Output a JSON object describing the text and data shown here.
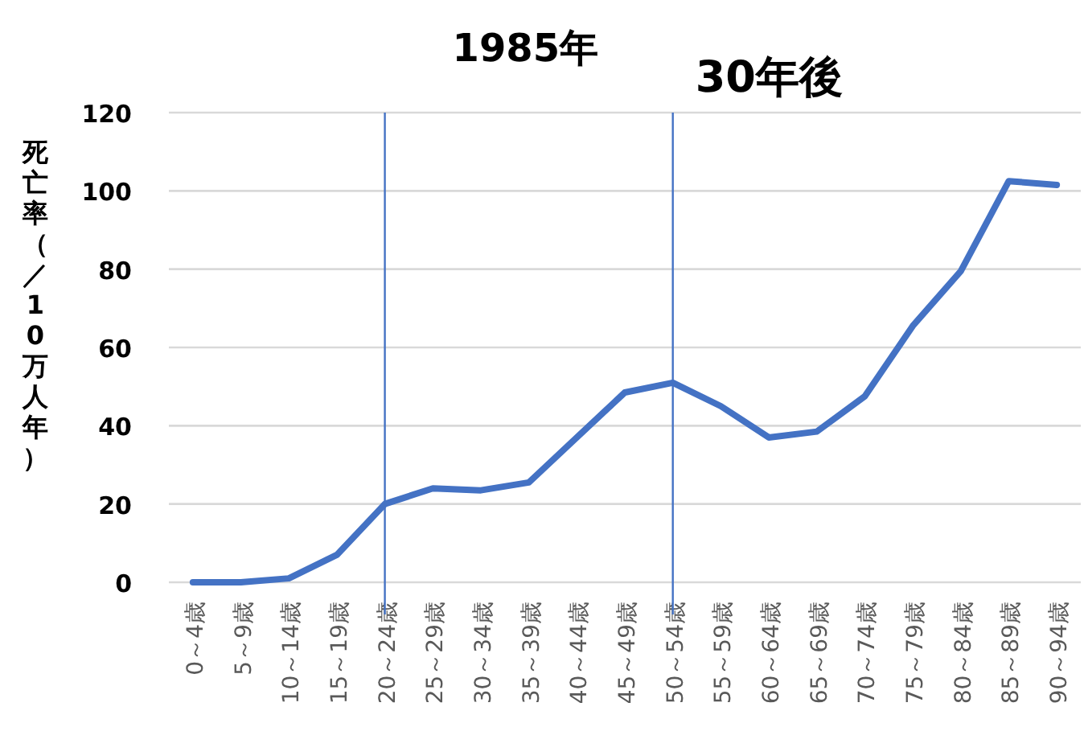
{
  "chart_data": {
    "type": "line",
    "ylabel": "死亡率（／10万人年）",
    "categories": [
      "0～4歳",
      "5～9歳",
      "10～14歳",
      "15～19歳",
      "20～24歳",
      "25～29歳",
      "30～34歳",
      "35～39歳",
      "40～44歳",
      "45～49歳",
      "50～54歳",
      "55～59歳",
      "60～64歳",
      "65～69歳",
      "70～74歳",
      "75～79歳",
      "80～84歳",
      "85～89歳",
      "90～94歳"
    ],
    "series": [
      {
        "color": "#4472c4",
        "values": [
          0,
          0,
          1,
          7,
          20,
          24,
          23.5,
          25.5,
          37,
          48.5,
          51,
          45,
          37,
          38.5,
          47.5,
          65.5,
          79.5,
          102.5,
          101.5
        ]
      }
    ],
    "ylim": [
      0,
      120
    ],
    "yticks": [
      0,
      20,
      40,
      60,
      80,
      100,
      120
    ],
    "grid": "y",
    "marker": "none",
    "line_style": "solid",
    "ref_lines": [
      {
        "axis": "x",
        "value": "20～24歳",
        "label": "1985年",
        "color": "#4472c4"
      },
      {
        "axis": "x",
        "value": "50～54歳",
        "label": "30年後",
        "color": "#4472c4"
      }
    ]
  }
}
